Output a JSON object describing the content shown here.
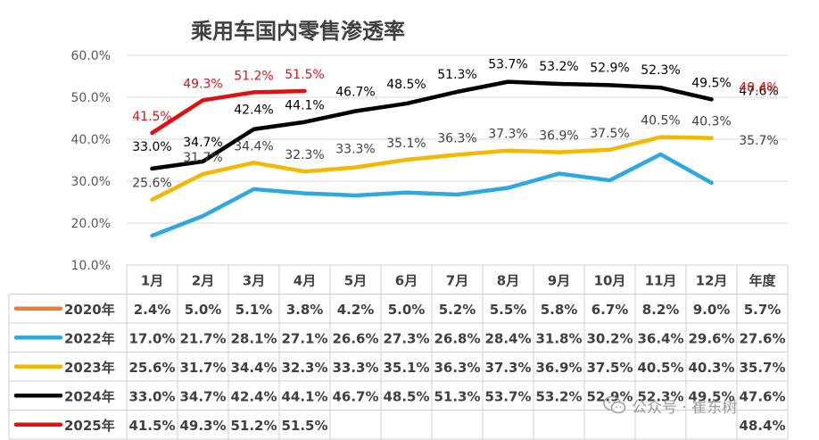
{
  "chart_data": {
    "type": "line",
    "title": "乘用车国内零售渗透率",
    "xlabel": "",
    "ylabel": "",
    "categories": [
      "1月",
      "2月",
      "3月",
      "4月",
      "5月",
      "6月",
      "7月",
      "8月",
      "9月",
      "10月",
      "11月",
      "12月",
      "年度"
    ],
    "y_ticks": [
      "10.0%",
      "20.0%",
      "30.0%",
      "40.0%",
      "50.0%",
      "60.0%"
    ],
    "ylim": [
      10,
      60
    ],
    "grid": true,
    "legend": "in data table rows",
    "series": [
      {
        "name": "2020年",
        "color": "#ED7D31",
        "plotted": false,
        "values": [
          2.4,
          5.0,
          5.1,
          3.8,
          4.2,
          5.0,
          5.2,
          5.5,
          5.8,
          6.7,
          8.2,
          9.0,
          5.7
        ],
        "table": [
          "2.4%",
          "5.0%",
          "5.1%",
          "3.8%",
          "4.2%",
          "5.0%",
          "5.2%",
          "5.5%",
          "5.8%",
          "6.7%",
          "8.2%",
          "9.0%",
          "5.7%"
        ]
      },
      {
        "name": "2022年",
        "color": "#2EA8E0",
        "plotted": true,
        "show_labels": false,
        "values": [
          17.0,
          21.7,
          28.1,
          27.1,
          26.6,
          27.3,
          26.8,
          28.4,
          31.8,
          30.2,
          36.4,
          29.6,
          27.6
        ],
        "table": [
          "17.0%",
          "21.7%",
          "28.1%",
          "27.1%",
          "26.6%",
          "27.3%",
          "26.8%",
          "28.4%",
          "31.8%",
          "30.2%",
          "36.4%",
          "29.6%",
          "27.6%"
        ]
      },
      {
        "name": "2023年",
        "color": "#F5B800",
        "plotted": true,
        "show_labels": true,
        "values": [
          25.6,
          31.7,
          34.4,
          32.3,
          33.3,
          35.1,
          36.3,
          37.3,
          36.9,
          37.5,
          40.5,
          40.3,
          35.7
        ],
        "table": [
          "25.6%",
          "31.7%",
          "34.4%",
          "32.3%",
          "33.3%",
          "35.1%",
          "36.3%",
          "37.3%",
          "36.9%",
          "37.5%",
          "40.5%",
          "40.3%",
          "35.7%"
        ]
      },
      {
        "name": "2024年",
        "color": "#000000",
        "plotted": true,
        "show_labels": true,
        "values": [
          33.0,
          34.7,
          42.4,
          44.1,
          46.7,
          48.5,
          51.3,
          53.7,
          53.2,
          52.9,
          52.3,
          49.5,
          47.6
        ],
        "table": [
          "33.0%",
          "34.7%",
          "42.4%",
          "44.1%",
          "46.7%",
          "48.5%",
          "51.3%",
          "53.7%",
          "53.2%",
          "52.9%",
          "52.3%",
          "49.5%",
          "47.6%"
        ]
      },
      {
        "name": "2025年",
        "color": "#E01010",
        "plotted": true,
        "show_labels": true,
        "values": [
          41.5,
          49.3,
          51.2,
          51.5,
          null,
          null,
          null,
          null,
          null,
          null,
          null,
          null,
          48.4
        ],
        "table": [
          "41.5%",
          "49.3%",
          "51.2%",
          "51.5%",
          "",
          "",
          "",
          "",
          "",
          "",
          "",
          "",
          "48.4%"
        ]
      }
    ]
  },
  "watermark": {
    "text": "公众号 · 崔东树",
    "icon": "wechat-icon"
  }
}
